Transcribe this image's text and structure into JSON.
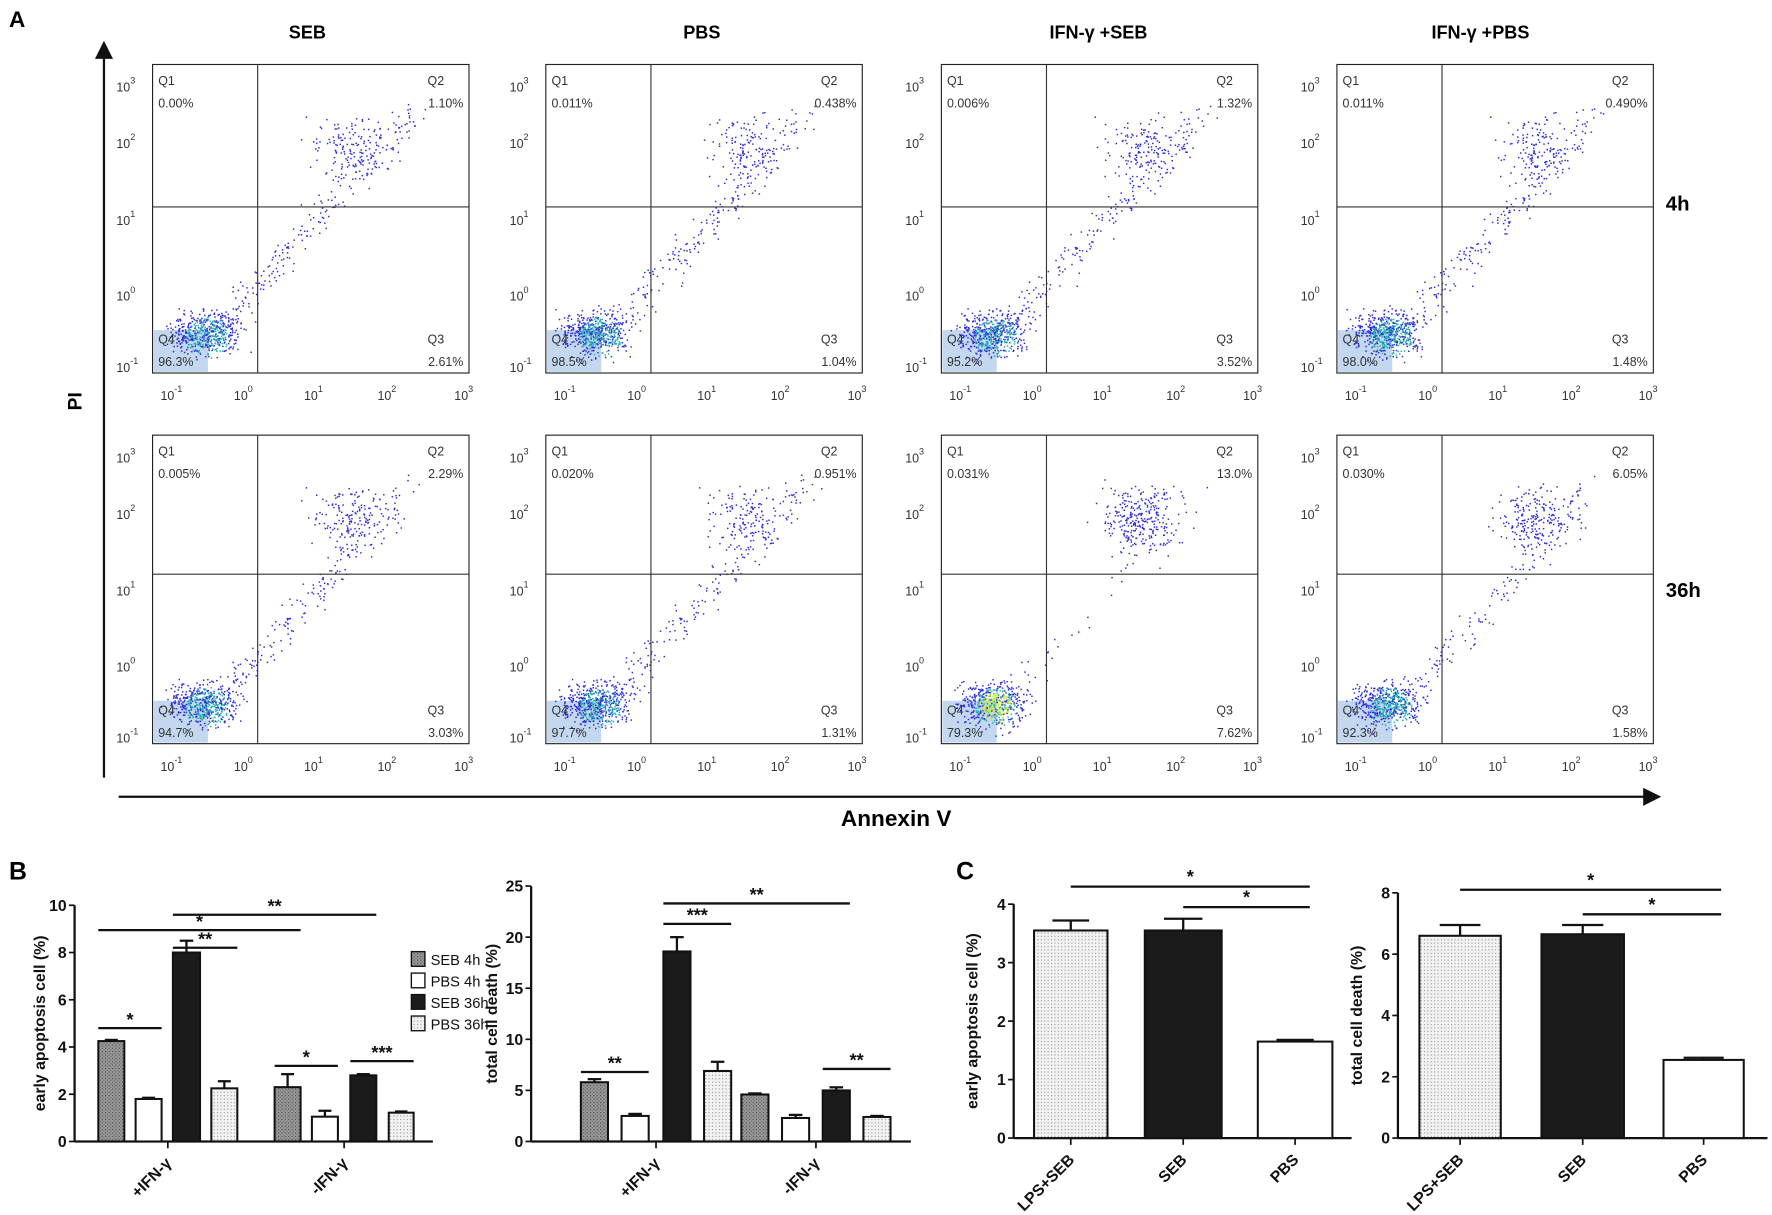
{
  "panel_letters": {
    "a": "A",
    "b": "B",
    "c": "C"
  },
  "panel_a": {
    "column_titles": [
      "SEB",
      "PBS",
      "IFN-γ +SEB",
      "IFN-γ +PBS"
    ],
    "row_labels": [
      "4h",
      "36h"
    ],
    "y_axis_label": "PI",
    "x_axis_label": "Annexin V",
    "tick_base": "10",
    "tick_exponents": [
      "-1",
      "0",
      "1",
      "2",
      "3"
    ],
    "quadrant_names": [
      "Q1",
      "Q2",
      "Q3",
      "Q4"
    ],
    "rows": [
      [
        {
          "q1": "0.00%",
          "q2": "1.10%",
          "q3": "2.61%",
          "q4": "96.3%"
        },
        {
          "q1": "0.011%",
          "q2": "0.438%",
          "q3": "1.04%",
          "q4": "98.5%"
        },
        {
          "q1": "0.006%",
          "q2": "1.32%",
          "q3": "3.52%",
          "q4": "95.2%"
        },
        {
          "q1": "0.011%",
          "q2": "0.490%",
          "q3": "1.48%",
          "q4": "98.0%"
        }
      ],
      [
        {
          "q1": "0.005%",
          "q2": "2.29%",
          "q3": "3.03%",
          "q4": "94.7%"
        },
        {
          "q1": "0.020%",
          "q2": "0.951%",
          "q3": "1.31%",
          "q4": "97.7%"
        },
        {
          "q1": "0.031%",
          "q2": "13.0%",
          "q3": "7.62%",
          "q4": "79.3%"
        },
        {
          "q1": "0.030%",
          "q2": "6.05%",
          "q3": "1.58%",
          "q4": "92.3%"
        }
      ]
    ],
    "colors": {
      "dot": "#2b2bd6",
      "dense": "#22b0b0",
      "core": "#c8e830",
      "q4_gate": "#b8d0ec"
    }
  },
  "chart_data": [
    {
      "id": "b1",
      "type": "bar",
      "title": "",
      "xlabel": "",
      "ylabel": "early apoptosis cell (%)",
      "ylim": [
        0,
        10
      ],
      "yticks": [
        "0",
        "2",
        "4",
        "6",
        "8",
        "10"
      ],
      "categories": [
        "+IFN-γ",
        "-IFN-γ"
      ],
      "series": [
        {
          "name": "SEB 4h",
          "values": [
            4.25,
            2.3
          ],
          "errors": [
            0.05,
            0.55
          ]
        },
        {
          "name": "PBS 4h",
          "values": [
            1.8,
            1.05
          ],
          "errors": [
            0.05,
            0.25
          ]
        },
        {
          "name": "SEB 36h",
          "values": [
            8.0,
            2.8
          ],
          "errors": [
            0.5,
            0.05
          ]
        },
        {
          "name": "PBS 36h",
          "values": [
            2.25,
            1.22
          ],
          "errors": [
            0.3,
            0.05
          ]
        }
      ],
      "legend": "top-right",
      "significance": [
        {
          "label": "**",
          "from": [
            0,
            2
          ],
          "to": [
            1,
            2
          ],
          "level": 9.6
        },
        {
          "label": "*",
          "from": [
            0,
            0
          ],
          "to": [
            1,
            0
          ],
          "level": 8.95
        },
        {
          "label": "**",
          "from": [
            0,
            2
          ],
          "to": [
            0,
            3
          ],
          "level": 8.2
        },
        {
          "label": "*",
          "from": [
            0,
            0
          ],
          "to": [
            0,
            1
          ],
          "level": 4.8
        },
        {
          "label": "*",
          "from": [
            1,
            0
          ],
          "to": [
            1,
            1
          ],
          "level": 3.2
        },
        {
          "label": "***",
          "from": [
            1,
            2
          ],
          "to": [
            1,
            3
          ],
          "level": 3.4
        }
      ]
    },
    {
      "id": "b2",
      "type": "bar",
      "title": "",
      "xlabel": "",
      "ylabel": "total cell death (%)",
      "ylim": [
        0,
        25
      ],
      "yticks": [
        "0",
        "5",
        "10",
        "15",
        "20",
        "25"
      ],
      "categories": [
        "+IFN-γ",
        "-IFN-γ"
      ],
      "series": [
        {
          "name": "SEB 4h",
          "values": [
            5.8,
            4.6
          ],
          "errors": [
            0.3,
            0.1
          ]
        },
        {
          "name": "PBS 4h",
          "values": [
            2.5,
            2.3
          ],
          "errors": [
            0.2,
            0.3
          ]
        },
        {
          "name": "SEB 36h",
          "values": [
            18.6,
            5.0
          ],
          "errors": [
            1.4,
            0.3
          ]
        },
        {
          "name": "PBS 36h",
          "values": [
            6.9,
            2.4
          ],
          "errors": [
            0.9,
            0.1
          ]
        }
      ],
      "significance": [
        {
          "label": "**",
          "from": [
            0,
            2
          ],
          "to": [
            1,
            2
          ],
          "level": 23.3
        },
        {
          "label": "***",
          "from": [
            0,
            2
          ],
          "to": [
            0,
            3
          ],
          "level": 21.3
        },
        {
          "label": "**",
          "from": [
            0,
            0
          ],
          "to": [
            0,
            1
          ],
          "level": 6.8
        },
        {
          "label": "**",
          "from": [
            1,
            2
          ],
          "to": [
            1,
            3
          ],
          "level": 7.1
        }
      ]
    },
    {
      "id": "c1",
      "type": "bar",
      "title": "",
      "xlabel": "",
      "ylabel": "early apoptosis cell (%)",
      "ylim": [
        0,
        4
      ],
      "yticks": [
        "0",
        "1",
        "2",
        "3",
        "4"
      ],
      "categories": [
        "LPS+SEB",
        "SEB",
        "PBS"
      ],
      "values": [
        3.55,
        3.55,
        1.65
      ],
      "errors": [
        0.17,
        0.2,
        0.03
      ],
      "significance": [
        {
          "label": "*",
          "from": 0,
          "to": 2,
          "level": 4.3
        },
        {
          "label": "*",
          "from": 1,
          "to": 2,
          "level": 3.95
        }
      ]
    },
    {
      "id": "c2",
      "type": "bar",
      "title": "",
      "xlabel": "",
      "ylabel": "total cell death (%)",
      "ylim": [
        0,
        8
      ],
      "yticks": [
        "0",
        "2",
        "4",
        "6",
        "8"
      ],
      "categories": [
        "LPS+SEB",
        "SEB",
        "PBS"
      ],
      "values": [
        6.6,
        6.65,
        2.55
      ],
      "errors": [
        0.35,
        0.3,
        0.07
      ],
      "significance": [
        {
          "label": "*",
          "from": 0,
          "to": 2,
          "level": 8.1
        },
        {
          "label": "*",
          "from": 1,
          "to": 2,
          "level": 7.3
        }
      ]
    }
  ]
}
